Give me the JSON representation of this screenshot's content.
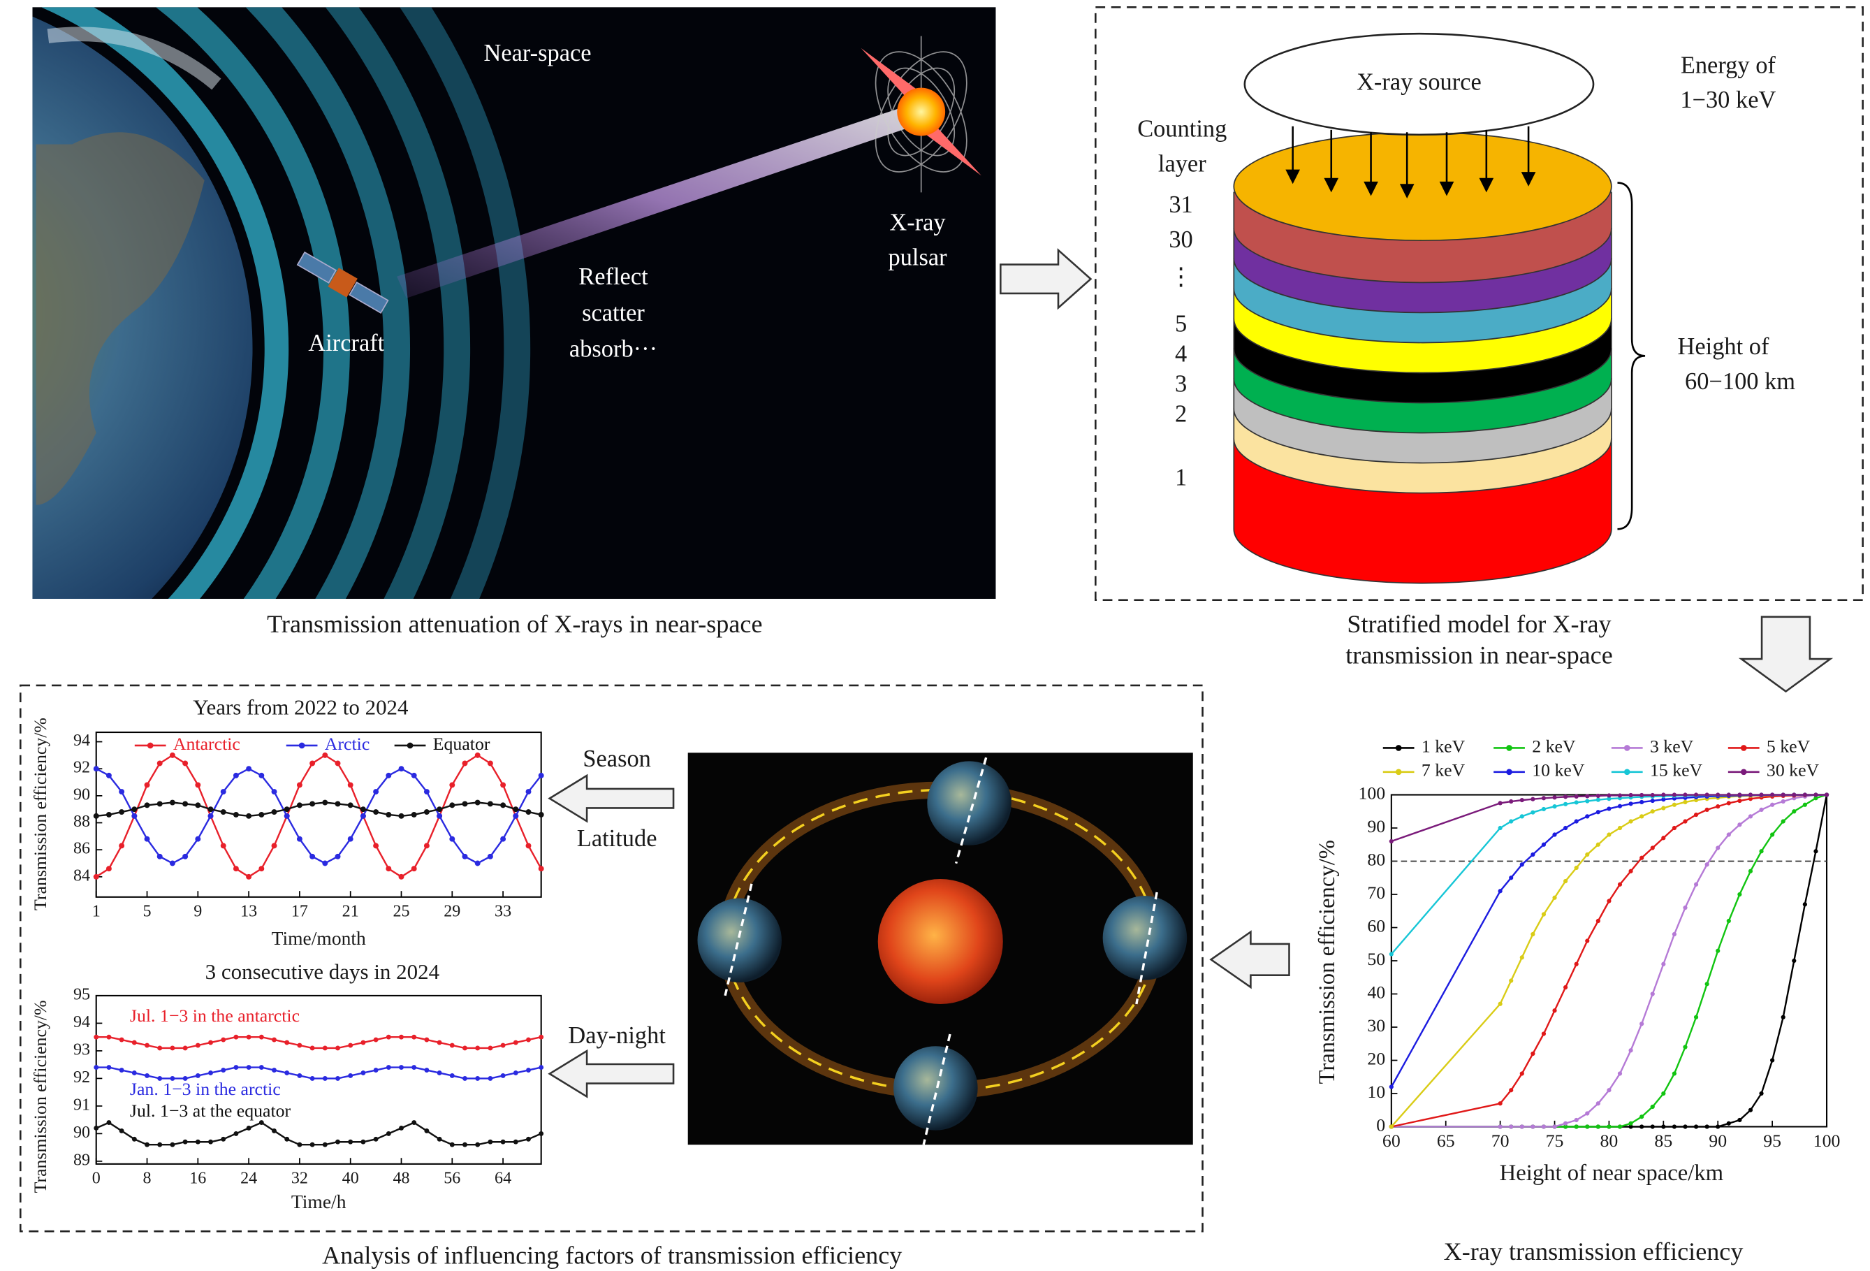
{
  "panel_photo": {
    "near_space": "Near-space",
    "pulsar": [
      "X-ray",
      "pulsar"
    ],
    "effects": [
      "Reflect",
      "scatter",
      "absorb···"
    ],
    "aircraft": "Aircraft",
    "caption": "Transmission attenuation of X-rays in near-space"
  },
  "panel_model": {
    "source": "X-ray source",
    "energy": [
      "Energy of",
      "1−30 keV"
    ],
    "counting": [
      "Counting",
      "layer"
    ],
    "layers": [
      "31",
      "30",
      "⋮",
      "5",
      "4",
      "3",
      "2",
      "1"
    ],
    "height": [
      "Height of",
      "60−100 km"
    ],
    "caption": [
      "Stratified model for X-ray",
      "transmission in near-space"
    ]
  },
  "panel_factors": {
    "season": "Season",
    "latitude": "Latitude",
    "day_night": "Day-night",
    "caption": "Analysis of influencing factors of transmission efficiency"
  },
  "chart_data": [
    {
      "type": "line",
      "title": "Years from 2022 to 2024",
      "x_label": "Time/month",
      "y_label": "Transmission efficiency/%",
      "x": [
        1,
        2,
        3,
        4,
        5,
        6,
        7,
        8,
        9,
        10,
        11,
        12,
        13,
        14,
        15,
        16,
        17,
        18,
        19,
        20,
        21,
        22,
        23,
        24,
        25,
        26,
        27,
        28,
        29,
        30,
        31,
        32,
        33,
        34,
        35,
        36
      ],
      "xlim": [
        1,
        36
      ],
      "xticks": [
        1,
        5,
        9,
        13,
        17,
        21,
        25,
        29,
        33
      ],
      "ylim": [
        82.5,
        94.7
      ],
      "yticks": [
        84,
        86,
        88,
        90,
        92,
        94
      ],
      "legend": "top",
      "series": [
        {
          "name": "Antarctic",
          "color": "#e8202a",
          "values": [
            84,
            84.6,
            86.3,
            88.5,
            90.8,
            92.4,
            93,
            92.4,
            90.8,
            88.5,
            86.3,
            84.6,
            84,
            84.6,
            86.3,
            88.5,
            90.8,
            92.4,
            93,
            92.4,
            90.8,
            88.5,
            86.3,
            84.6,
            84,
            84.6,
            86.3,
            88.5,
            90.8,
            92.4,
            93,
            92.4,
            90.8,
            88.5,
            86.3,
            84.6
          ]
        },
        {
          "name": "Arctic",
          "color": "#2a2ae0",
          "values": [
            92,
            91.5,
            90.3,
            88.5,
            86.8,
            85.5,
            85,
            85.5,
            86.8,
            88.5,
            90.3,
            91.5,
            92,
            91.5,
            90.3,
            88.5,
            86.8,
            85.5,
            85,
            85.5,
            86.8,
            88.5,
            90.3,
            91.5,
            92,
            91.5,
            90.3,
            88.5,
            86.8,
            85.5,
            85,
            85.5,
            86.8,
            88.5,
            90.3,
            91.5
          ]
        },
        {
          "name": "Equator",
          "color": "#111111",
          "values": [
            88.5,
            88.6,
            88.8,
            89,
            89.3,
            89.4,
            89.5,
            89.4,
            89.3,
            89,
            88.8,
            88.6,
            88.5,
            88.6,
            88.8,
            89,
            89.3,
            89.4,
            89.5,
            89.4,
            89.3,
            89,
            88.8,
            88.6,
            88.5,
            88.6,
            88.8,
            89,
            89.3,
            89.4,
            89.5,
            89.4,
            89.3,
            89,
            88.8,
            88.6
          ]
        }
      ]
    },
    {
      "type": "line",
      "title": "3 consecutive days in 2024",
      "x_label": "Time/h",
      "y_label": "Transmission efficiency/%",
      "x": [
        0,
        2,
        4,
        6,
        8,
        10,
        12,
        14,
        16,
        18,
        20,
        22,
        24,
        26,
        28,
        30,
        32,
        34,
        36,
        38,
        40,
        42,
        44,
        46,
        48,
        50,
        52,
        54,
        56,
        58,
        60,
        62,
        64,
        66,
        68,
        70
      ],
      "xlim": [
        0,
        70
      ],
      "xticks": [
        0,
        8,
        16,
        24,
        32,
        40,
        48,
        56,
        64
      ],
      "ylim": [
        88.9,
        95
      ],
      "yticks": [
        89,
        90,
        91,
        92,
        93,
        94,
        95
      ],
      "legend": "inline",
      "series": [
        {
          "name": "Jul. 1−3 in the antarctic",
          "color": "#e8202a",
          "values": [
            93.5,
            93.5,
            93.4,
            93.3,
            93.2,
            93.1,
            93.1,
            93.1,
            93.2,
            93.3,
            93.4,
            93.5,
            93.5,
            93.5,
            93.4,
            93.3,
            93.2,
            93.1,
            93.1,
            93.1,
            93.2,
            93.3,
            93.4,
            93.5,
            93.5,
            93.5,
            93.4,
            93.3,
            93.2,
            93.1,
            93.1,
            93.1,
            93.2,
            93.3,
            93.4,
            93.5
          ]
        },
        {
          "name": "Jan. 1−3 in the arctic",
          "color": "#2a2ae0",
          "values": [
            92.4,
            92.4,
            92.3,
            92.2,
            92.1,
            92,
            92,
            92,
            92.1,
            92.2,
            92.3,
            92.4,
            92.4,
            92.4,
            92.3,
            92.2,
            92.1,
            92,
            92,
            92,
            92.1,
            92.2,
            92.3,
            92.4,
            92.4,
            92.4,
            92.3,
            92.2,
            92.1,
            92,
            92,
            92,
            92.1,
            92.2,
            92.3,
            92.4
          ]
        },
        {
          "name": "Jul. 1−3 at the equator",
          "color": "#111111",
          "values": [
            90.2,
            90.4,
            90.1,
            89.8,
            89.6,
            89.6,
            89.6,
            89.7,
            89.7,
            89.7,
            89.8,
            90,
            90.2,
            90.4,
            90.1,
            89.8,
            89.6,
            89.6,
            89.6,
            89.7,
            89.7,
            89.7,
            89.8,
            90,
            90.2,
            90.4,
            90.1,
            89.8,
            89.6,
            89.6,
            89.6,
            89.7,
            89.7,
            89.7,
            89.8,
            90
          ]
        }
      ]
    },
    {
      "type": "line",
      "title": "X-ray transmission efficiency",
      "x_label": "Height of near space/km",
      "y_label": "Transmission efficiency/%",
      "x": [
        60,
        70,
        71,
        72,
        73,
        74,
        75,
        76,
        77,
        78,
        79,
        80,
        81,
        82,
        83,
        84,
        85,
        86,
        87,
        88,
        89,
        90,
        91,
        92,
        93,
        94,
        95,
        96,
        97,
        98,
        99,
        100
      ],
      "xlim": [
        60,
        100
      ],
      "xticks": [
        60,
        65,
        70,
        75,
        80,
        85,
        90,
        95,
        100
      ],
      "ylim": [
        0,
        100
      ],
      "yticks": [
        0,
        10,
        20,
        30,
        40,
        50,
        60,
        70,
        80,
        90,
        100
      ],
      "reference_line": 80,
      "legend": "above",
      "series": [
        {
          "name": "1 keV",
          "color": "#000000",
          "values": [
            0,
            0,
            0,
            0,
            0,
            0,
            0,
            0,
            0,
            0,
            0,
            0,
            0,
            0,
            0,
            0,
            0,
            0,
            0,
            0,
            0,
            0,
            1,
            2,
            5,
            10,
            20,
            33,
            50,
            67,
            83,
            100
          ]
        },
        {
          "name": "2 keV",
          "color": "#11c411",
          "values": [
            0,
            0,
            0,
            0,
            0,
            0,
            0,
            0,
            0,
            0,
            0,
            0,
            0,
            1,
            3,
            6,
            10,
            16,
            24,
            33,
            43,
            53,
            62,
            70,
            77,
            83,
            88,
            92,
            95,
            97,
            99,
            100
          ]
        },
        {
          "name": "3 keV",
          "color": "#b57ad6",
          "values": [
            0,
            0,
            0,
            0,
            0,
            0,
            0,
            1,
            2,
            4,
            7,
            11,
            16,
            23,
            31,
            40,
            49,
            58,
            66,
            73,
            79,
            84,
            88,
            91,
            93.5,
            95.5,
            97,
            98,
            99,
            99.5,
            100,
            100
          ]
        },
        {
          "name": "5 keV",
          "color": "#e01818",
          "values": [
            0,
            7,
            11,
            16,
            22,
            28,
            35,
            42,
            49,
            56,
            62,
            68,
            73,
            77,
            81,
            84,
            87,
            90,
            92,
            94,
            95.5,
            96.5,
            97.5,
            98.2,
            98.8,
            99.2,
            99.5,
            99.7,
            99.8,
            99.9,
            100,
            100
          ]
        },
        {
          "name": "7 keV",
          "color": "#d9cc16",
          "values": [
            0,
            37,
            44,
            51,
            58,
            64,
            69,
            74,
            78,
            82,
            85,
            88,
            90,
            92,
            93.5,
            95,
            96,
            97,
            97.8,
            98.4,
            98.8,
            99.1,
            99.4,
            99.6,
            99.7,
            99.8,
            99.9,
            100,
            100,
            100,
            100,
            100
          ]
        },
        {
          "name": "10 keV",
          "color": "#1c1ce0",
          "values": [
            12,
            71,
            75,
            79,
            82,
            85,
            88,
            90,
            92,
            93.5,
            94.8,
            95.8,
            96.6,
            97.3,
            97.8,
            98.2,
            98.6,
            98.9,
            99.1,
            99.3,
            99.5,
            99.6,
            99.7,
            99.8,
            99.9,
            99.9,
            100,
            100,
            100,
            100,
            100,
            100
          ]
        },
        {
          "name": "15 keV",
          "color": "#16c6d6",
          "values": [
            52,
            90,
            92,
            93.5,
            94.7,
            95.7,
            96.5,
            97.2,
            97.7,
            98.1,
            98.5,
            98.8,
            99,
            99.2,
            99.4,
            99.5,
            99.6,
            99.7,
            99.8,
            99.8,
            99.9,
            99.9,
            100,
            100,
            100,
            100,
            100,
            100,
            100,
            100,
            100,
            100
          ]
        },
        {
          "name": "30 keV",
          "color": "#7a1a7a",
          "values": [
            86,
            97.5,
            98,
            98.4,
            98.7,
            99,
            99.2,
            99.4,
            99.5,
            99.6,
            99.7,
            99.8,
            99.8,
            99.9,
            99.9,
            99.9,
            100,
            100,
            100,
            100,
            100,
            100,
            100,
            100,
            100,
            100,
            100,
            100,
            100,
            100,
            100,
            100
          ]
        }
      ]
    }
  ]
}
